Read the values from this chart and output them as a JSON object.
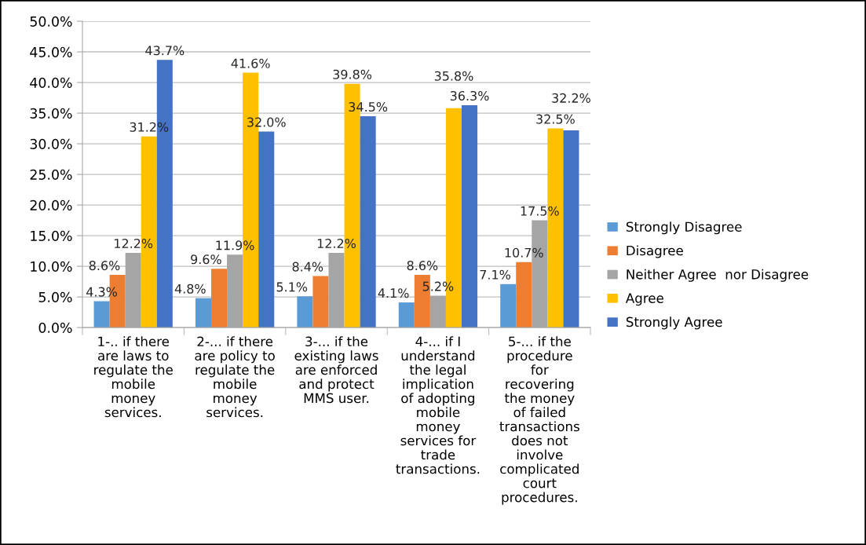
{
  "chart_data": {
    "type": "bar",
    "categories": [
      "1-.. if there\nare laws to\nregulate the\nmobile\nmoney\nservices.",
      "2-... if there\nare policy to\nregulate the\nmobile\nmoney\nservices.",
      "3-... if the\nexisting laws\nare enforced\nand protect\nMMS user.",
      "4-... if I\nunderstand\nthe legal\nimplication\nof adopting\nmobile\nmoney\nservices for\ntrade\ntransactions.",
      "5-... if the\nprocedure\nfor\nrecovering\nthe money\nof failed\ntransactions\ndoes not\ninvolve\ncomplicated\ncourt\nprocedures."
    ],
    "series": [
      {
        "name": "Strongly Disagree",
        "color": "#5b9bd5",
        "values": [
          4.3,
          4.8,
          5.1,
          4.1,
          7.1
        ],
        "value_labels": [
          "4.3%",
          "4.8%",
          "5.1%",
          "4.1%",
          "7.1%"
        ]
      },
      {
        "name": "Disagree",
        "color": "#ed7d31",
        "values": [
          8.6,
          9.6,
          8.4,
          8.6,
          10.7
        ],
        "value_labels": [
          "8.6%",
          "9.6%",
          "8.4%",
          "8.6%",
          "10.7%"
        ]
      },
      {
        "name": "Neither Agree  nor Disagree",
        "color": "#a5a5a5",
        "values": [
          12.2,
          11.9,
          12.2,
          5.2,
          17.5
        ],
        "value_labels": [
          "12.2%",
          "11.9%",
          "12.2%",
          "5.2%",
          "17.5%"
        ]
      },
      {
        "name": "Agree",
        "color": "#ffc000",
        "values": [
          31.2,
          41.6,
          39.8,
          35.8,
          32.5
        ],
        "value_labels": [
          "31.2%",
          "41.6%",
          "39.8%",
          "35.8%",
          "32.5%"
        ]
      },
      {
        "name": "Strongly Agree",
        "color": "#4472c4",
        "values": [
          43.7,
          32.0,
          34.5,
          36.3,
          32.2
        ],
        "value_labels": [
          "43.7%",
          "32.0%",
          "34.5%",
          "36.3%",
          "32.2%"
        ]
      }
    ],
    "ylim": [
      0,
      50
    ],
    "yticks": [
      {
        "value": 0,
        "label": "0.0%"
      },
      {
        "value": 5,
        "label": "5.0%"
      },
      {
        "value": 10,
        "label": "10.0%"
      },
      {
        "value": 15,
        "label": "15.0%"
      },
      {
        "value": 20,
        "label": "20.0%"
      },
      {
        "value": 25,
        "label": "25.0%"
      },
      {
        "value": 30,
        "label": "30.0%"
      },
      {
        "value": 35,
        "label": "35.0%"
      },
      {
        "value": 40,
        "label": "40.0%"
      },
      {
        "value": 45,
        "label": "45.0%"
      },
      {
        "value": 50,
        "label": "50.0%"
      }
    ],
    "grid": "y",
    "legend": "right"
  }
}
